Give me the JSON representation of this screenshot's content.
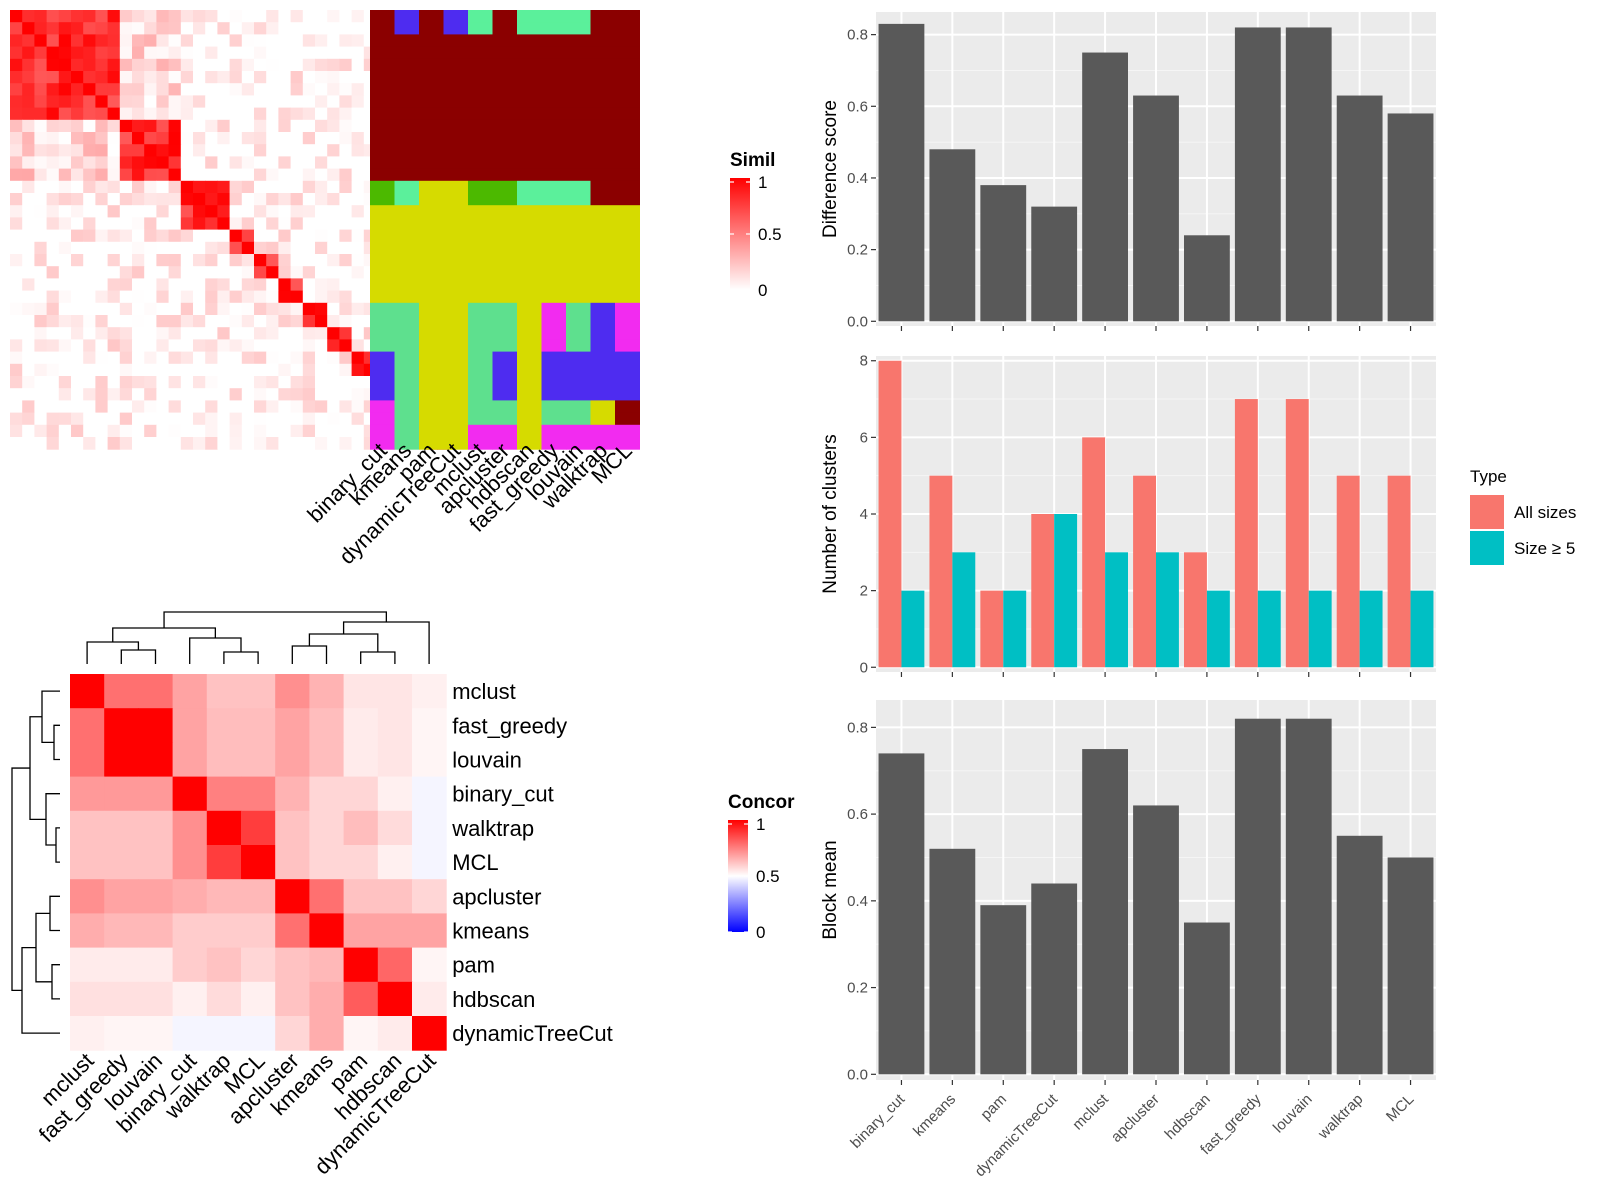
{
  "chart_data": [
    {
      "id": "similarity_heatmap",
      "type": "heatmap",
      "methods": [
        "binary_cut",
        "kmeans",
        "pam",
        "dynamicTreeCut",
        "mclust",
        "apcluster",
        "hdbscan",
        "fast_greedy",
        "louvain",
        "walktrap",
        "MCL"
      ],
      "legend": {
        "title": "Similarity",
        "ticks": [
          "0",
          "0.5",
          "1"
        ],
        "colors": [
          "#ffffff",
          "#ff0000"
        ]
      }
    },
    {
      "id": "difference_score",
      "type": "bar",
      "ylabel": "Difference score",
      "ylim": [
        0,
        0.85
      ],
      "yticks": [
        "0.0",
        "0.2",
        "0.4",
        "0.6",
        "0.8"
      ],
      "categories": [
        "binary_cut",
        "kmeans",
        "pam",
        "dynamicTreeCut",
        "mclust",
        "apcluster",
        "hdbscan",
        "fast_greedy",
        "louvain",
        "walktrap",
        "MCL"
      ],
      "values": [
        0.83,
        0.48,
        0.38,
        0.32,
        0.75,
        0.63,
        0.24,
        0.82,
        0.82,
        0.63,
        0.58
      ],
      "color": "#595959"
    },
    {
      "id": "number_of_clusters",
      "type": "bar",
      "ylabel": "Number of clusters",
      "ylim": [
        0,
        8
      ],
      "yticks": [
        "0",
        "2",
        "4",
        "6",
        "8"
      ],
      "categories": [
        "binary_cut",
        "kmeans",
        "pam",
        "dynamicTreeCut",
        "mclust",
        "apcluster",
        "hdbscan",
        "fast_greedy",
        "louvain",
        "walktrap",
        "MCL"
      ],
      "legend": {
        "title": "Type",
        "placement": "right"
      },
      "series": [
        {
          "name": "All sizes",
          "color": "#F8766D",
          "values": [
            8,
            5,
            2,
            4,
            6,
            5,
            3,
            7,
            7,
            5,
            5
          ]
        },
        {
          "name": "Size ≥ 5",
          "color": "#00BFC4",
          "values": [
            2,
            3,
            2,
            4,
            3,
            3,
            2,
            2,
            2,
            2,
            2
          ]
        }
      ]
    },
    {
      "id": "block_mean",
      "type": "bar",
      "ylabel": "Block mean",
      "ylim": [
        0,
        0.85
      ],
      "yticks": [
        "0.0",
        "0.2",
        "0.4",
        "0.6",
        "0.8"
      ],
      "categories": [
        "binary_cut",
        "kmeans",
        "pam",
        "dynamicTreeCut",
        "mclust",
        "apcluster",
        "hdbscan",
        "fast_greedy",
        "louvain",
        "walktrap",
        "MCL"
      ],
      "values": [
        0.74,
        0.52,
        0.39,
        0.44,
        0.75,
        0.62,
        0.35,
        0.82,
        0.82,
        0.55,
        0.5
      ],
      "color": "#595959"
    },
    {
      "id": "concordance_heatmap",
      "type": "heatmap",
      "rows": [
        "mclust",
        "fast_greedy",
        "louvain",
        "binary_cut",
        "walktrap",
        "MCL",
        "apcluster",
        "kmeans",
        "pam",
        "hdbscan",
        "dynamicTreeCut"
      ],
      "cols": [
        "mclust",
        "fast_greedy",
        "louvain",
        "binary_cut",
        "walktrap",
        "MCL",
        "apcluster",
        "kmeans",
        "pam",
        "hdbscan",
        "dynamicTreeCut"
      ],
      "legend": {
        "title": "Concordance",
        "ticks": [
          "0",
          "0.5",
          "1"
        ],
        "colors": [
          "#0000ff",
          "#ffffff",
          "#ff0000"
        ]
      },
      "values": [
        [
          1.0,
          0.78,
          0.78,
          0.68,
          0.62,
          0.62,
          0.72,
          0.65,
          0.55,
          0.55,
          0.53
        ],
        [
          0.78,
          1.0,
          1.0,
          0.68,
          0.63,
          0.63,
          0.68,
          0.63,
          0.54,
          0.55,
          0.52
        ],
        [
          0.78,
          1.0,
          1.0,
          0.68,
          0.63,
          0.63,
          0.68,
          0.63,
          0.54,
          0.55,
          0.52
        ],
        [
          0.7,
          0.7,
          0.7,
          1.0,
          0.75,
          0.75,
          0.65,
          0.58,
          0.58,
          0.53,
          0.48
        ],
        [
          0.62,
          0.62,
          0.62,
          0.72,
          1.0,
          0.88,
          0.62,
          0.58,
          0.63,
          0.57,
          0.48
        ],
        [
          0.62,
          0.62,
          0.62,
          0.72,
          0.88,
          1.0,
          0.62,
          0.58,
          0.58,
          0.53,
          0.48
        ],
        [
          0.72,
          0.68,
          0.68,
          0.66,
          0.64,
          0.64,
          1.0,
          0.78,
          0.62,
          0.62,
          0.58
        ],
        [
          0.66,
          0.64,
          0.64,
          0.6,
          0.6,
          0.6,
          0.78,
          1.0,
          0.68,
          0.68,
          0.68
        ],
        [
          0.54,
          0.54,
          0.54,
          0.6,
          0.62,
          0.58,
          0.62,
          0.64,
          1.0,
          0.8,
          0.52
        ],
        [
          0.56,
          0.56,
          0.56,
          0.53,
          0.57,
          0.53,
          0.62,
          0.66,
          0.82,
          1.0,
          0.54
        ],
        [
          0.53,
          0.52,
          0.52,
          0.48,
          0.48,
          0.48,
          0.58,
          0.66,
          0.52,
          0.54,
          1.0
        ]
      ]
    }
  ]
}
